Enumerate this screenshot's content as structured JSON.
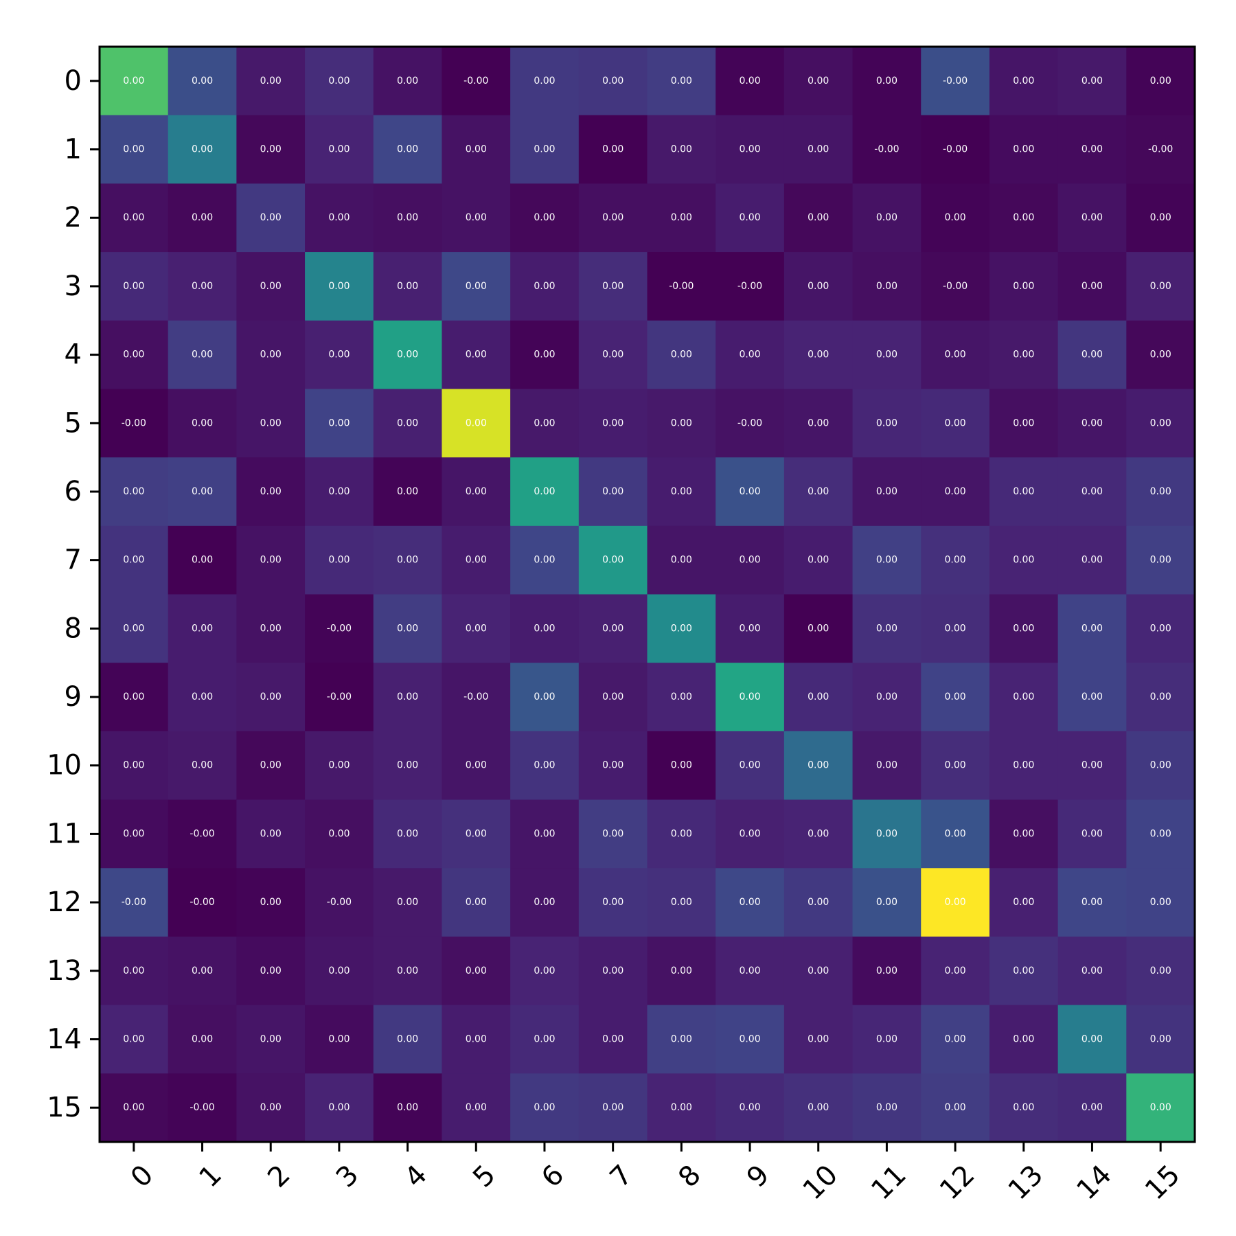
{
  "chart_data": {
    "type": "heatmap",
    "title": "",
    "xlabel": "",
    "ylabel": "",
    "x_tick_labels": [
      "0",
      "1",
      "2",
      "3",
      "4",
      "5",
      "6",
      "7",
      "8",
      "9",
      "10",
      "11",
      "12",
      "13",
      "14",
      "15"
    ],
    "y_tick_labels": [
      "0",
      "1",
      "2",
      "3",
      "4",
      "5",
      "6",
      "7",
      "8",
      "9",
      "10",
      "11",
      "12",
      "13",
      "14",
      "15"
    ],
    "x_tick_rotation_deg": 45,
    "colormap": "viridis",
    "value_range": [
      0,
      1
    ],
    "colors": {
      "viridis_low": "#440154",
      "viridis_mid": "#21918c",
      "viridis_high": "#fde725",
      "cell_text": "#ffffff",
      "frame": "#000000",
      "background": "#ffffff"
    },
    "intensity": [
      [
        0.72,
        0.24,
        0.07,
        0.13,
        0.05,
        0.0,
        0.17,
        0.16,
        0.18,
        0.01,
        0.04,
        0.01,
        0.24,
        0.06,
        0.07,
        0.01
      ],
      [
        0.22,
        0.42,
        0.02,
        0.1,
        0.21,
        0.05,
        0.17,
        0.0,
        0.07,
        0.06,
        0.06,
        0.01,
        0.0,
        0.03,
        0.03,
        0.02
      ],
      [
        0.04,
        0.02,
        0.17,
        0.05,
        0.04,
        0.05,
        0.02,
        0.04,
        0.04,
        0.08,
        0.02,
        0.05,
        0.01,
        0.02,
        0.05,
        0.01
      ],
      [
        0.12,
        0.09,
        0.05,
        0.45,
        0.09,
        0.22,
        0.08,
        0.13,
        0.0,
        0.0,
        0.06,
        0.04,
        0.02,
        0.05,
        0.03,
        0.09
      ],
      [
        0.04,
        0.18,
        0.06,
        0.09,
        0.57,
        0.08,
        0.01,
        0.1,
        0.16,
        0.08,
        0.1,
        0.1,
        0.06,
        0.07,
        0.16,
        0.02
      ],
      [
        0.0,
        0.04,
        0.06,
        0.2,
        0.09,
        0.94,
        0.07,
        0.08,
        0.07,
        0.05,
        0.06,
        0.11,
        0.12,
        0.04,
        0.06,
        0.08
      ],
      [
        0.18,
        0.19,
        0.03,
        0.08,
        0.01,
        0.06,
        0.57,
        0.17,
        0.08,
        0.25,
        0.13,
        0.06,
        0.06,
        0.12,
        0.12,
        0.17
      ],
      [
        0.15,
        0.0,
        0.05,
        0.12,
        0.13,
        0.08,
        0.21,
        0.54,
        0.06,
        0.06,
        0.08,
        0.19,
        0.14,
        0.1,
        0.1,
        0.19
      ],
      [
        0.15,
        0.08,
        0.05,
        0.01,
        0.18,
        0.1,
        0.08,
        0.09,
        0.48,
        0.08,
        0.0,
        0.14,
        0.13,
        0.05,
        0.2,
        0.11
      ],
      [
        0.01,
        0.08,
        0.07,
        0.0,
        0.09,
        0.06,
        0.27,
        0.07,
        0.1,
        0.59,
        0.12,
        0.1,
        0.2,
        0.1,
        0.2,
        0.13
      ],
      [
        0.06,
        0.07,
        0.02,
        0.07,
        0.09,
        0.06,
        0.15,
        0.08,
        0.0,
        0.14,
        0.35,
        0.07,
        0.13,
        0.1,
        0.1,
        0.17
      ],
      [
        0.03,
        0.01,
        0.06,
        0.04,
        0.12,
        0.14,
        0.06,
        0.18,
        0.12,
        0.09,
        0.1,
        0.39,
        0.26,
        0.04,
        0.12,
        0.2
      ],
      [
        0.22,
        0.0,
        0.01,
        0.05,
        0.07,
        0.16,
        0.06,
        0.15,
        0.14,
        0.22,
        0.17,
        0.25,
        1.0,
        0.09,
        0.21,
        0.2
      ],
      [
        0.06,
        0.05,
        0.03,
        0.06,
        0.07,
        0.04,
        0.1,
        0.08,
        0.05,
        0.09,
        0.09,
        0.03,
        0.1,
        0.14,
        0.11,
        0.13
      ],
      [
        0.1,
        0.04,
        0.06,
        0.03,
        0.17,
        0.08,
        0.12,
        0.08,
        0.19,
        0.2,
        0.09,
        0.11,
        0.19,
        0.08,
        0.42,
        0.15
      ],
      [
        0.02,
        0.01,
        0.05,
        0.1,
        0.01,
        0.08,
        0.17,
        0.16,
        0.1,
        0.12,
        0.14,
        0.16,
        0.18,
        0.13,
        0.12,
        0.65
      ]
    ],
    "cell_labels": [
      [
        "0.00",
        "0.00",
        "0.00",
        "0.00",
        "0.00",
        "-0.00",
        "0.00",
        "0.00",
        "0.00",
        "0.00",
        "0.00",
        "0.00",
        "-0.00",
        "0.00",
        "0.00",
        "0.00"
      ],
      [
        "0.00",
        "0.00",
        "0.00",
        "0.00",
        "0.00",
        "0.00",
        "0.00",
        "0.00",
        "0.00",
        "0.00",
        "0.00",
        "-0.00",
        "-0.00",
        "0.00",
        "0.00",
        "-0.00"
      ],
      [
        "0.00",
        "0.00",
        "0.00",
        "0.00",
        "0.00",
        "0.00",
        "0.00",
        "0.00",
        "0.00",
        "0.00",
        "0.00",
        "0.00",
        "0.00",
        "0.00",
        "0.00",
        "0.00"
      ],
      [
        "0.00",
        "0.00",
        "0.00",
        "0.00",
        "0.00",
        "0.00",
        "0.00",
        "0.00",
        "-0.00",
        "-0.00",
        "0.00",
        "0.00",
        "-0.00",
        "0.00",
        "0.00",
        "0.00"
      ],
      [
        "0.00",
        "0.00",
        "0.00",
        "0.00",
        "0.00",
        "0.00",
        "0.00",
        "0.00",
        "0.00",
        "0.00",
        "0.00",
        "0.00",
        "0.00",
        "0.00",
        "0.00",
        "0.00"
      ],
      [
        "-0.00",
        "0.00",
        "0.00",
        "0.00",
        "0.00",
        "0.00",
        "0.00",
        "0.00",
        "0.00",
        "-0.00",
        "0.00",
        "0.00",
        "0.00",
        "0.00",
        "0.00",
        "0.00"
      ],
      [
        "0.00",
        "0.00",
        "0.00",
        "0.00",
        "0.00",
        "0.00",
        "0.00",
        "0.00",
        "0.00",
        "0.00",
        "0.00",
        "0.00",
        "0.00",
        "0.00",
        "0.00",
        "0.00"
      ],
      [
        "0.00",
        "0.00",
        "0.00",
        "0.00",
        "0.00",
        "0.00",
        "0.00",
        "0.00",
        "0.00",
        "0.00",
        "0.00",
        "0.00",
        "0.00",
        "0.00",
        "0.00",
        "0.00"
      ],
      [
        "0.00",
        "0.00",
        "0.00",
        "-0.00",
        "0.00",
        "0.00",
        "0.00",
        "0.00",
        "0.00",
        "0.00",
        "0.00",
        "0.00",
        "0.00",
        "0.00",
        "0.00",
        "0.00"
      ],
      [
        "0.00",
        "0.00",
        "0.00",
        "-0.00",
        "0.00",
        "-0.00",
        "0.00",
        "0.00",
        "0.00",
        "0.00",
        "0.00",
        "0.00",
        "0.00",
        "0.00",
        "0.00",
        "0.00"
      ],
      [
        "0.00",
        "0.00",
        "0.00",
        "0.00",
        "0.00",
        "0.00",
        "0.00",
        "0.00",
        "0.00",
        "0.00",
        "0.00",
        "0.00",
        "0.00",
        "0.00",
        "0.00",
        "0.00"
      ],
      [
        "0.00",
        "-0.00",
        "0.00",
        "0.00",
        "0.00",
        "0.00",
        "0.00",
        "0.00",
        "0.00",
        "0.00",
        "0.00",
        "0.00",
        "0.00",
        "0.00",
        "0.00",
        "0.00"
      ],
      [
        "-0.00",
        "-0.00",
        "0.00",
        "-0.00",
        "0.00",
        "0.00",
        "0.00",
        "0.00",
        "0.00",
        "0.00",
        "0.00",
        "0.00",
        "0.00",
        "0.00",
        "0.00",
        "0.00"
      ],
      [
        "0.00",
        "0.00",
        "0.00",
        "0.00",
        "0.00",
        "0.00",
        "0.00",
        "0.00",
        "0.00",
        "0.00",
        "0.00",
        "0.00",
        "0.00",
        "0.00",
        "0.00",
        "0.00"
      ],
      [
        "0.00",
        "0.00",
        "0.00",
        "0.00",
        "0.00",
        "0.00",
        "0.00",
        "0.00",
        "0.00",
        "0.00",
        "0.00",
        "0.00",
        "0.00",
        "0.00",
        "0.00",
        "0.00"
      ],
      [
        "0.00",
        "-0.00",
        "0.00",
        "0.00",
        "0.00",
        "0.00",
        "0.00",
        "0.00",
        "0.00",
        "0.00",
        "0.00",
        "0.00",
        "0.00",
        "0.00",
        "0.00",
        "0.00"
      ]
    ]
  }
}
